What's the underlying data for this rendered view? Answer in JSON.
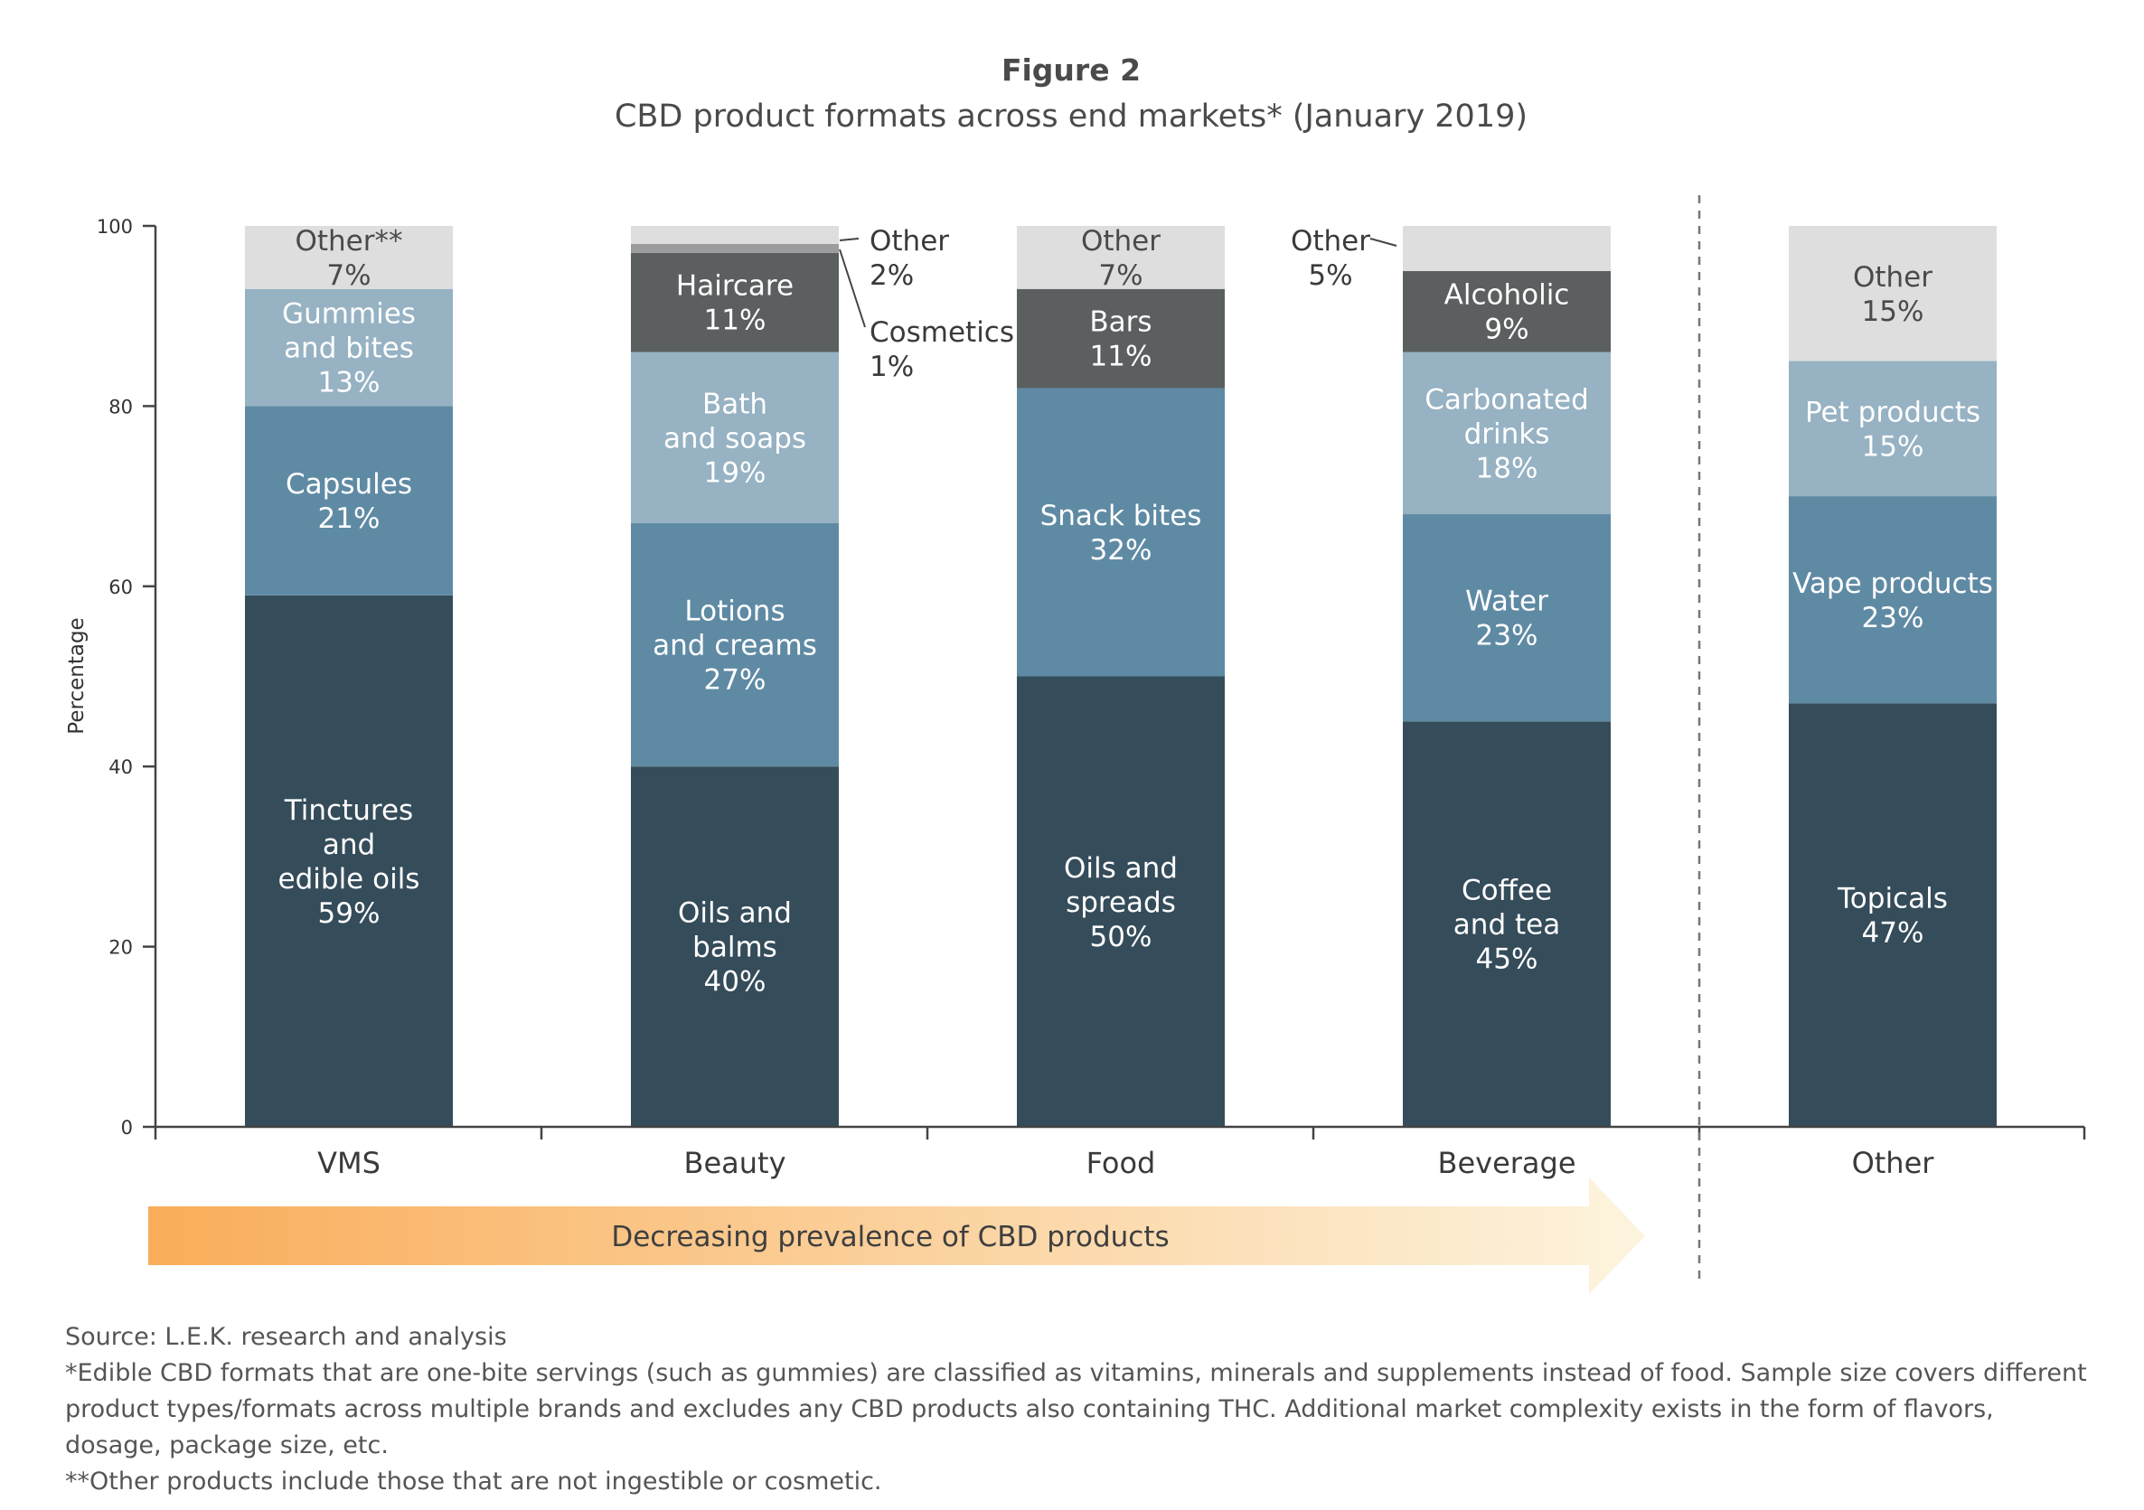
{
  "figure_label": "Figure 2",
  "colors": {
    "dark": "#354c5a",
    "mid": "#5f8aa4",
    "light": "#96b2c3",
    "charcoal": "#5b5f60",
    "grey": "#9a9c9d",
    "pale": "#dddedd",
    "axis": "#444444",
    "arrow_start": "#f9ad5a",
    "arrow_end": "#fdf4de"
  },
  "chart_data": {
    "type": "bar",
    "stacked": true,
    "title": "CBD product formats across end markets* (January 2019)",
    "xlabel": "",
    "ylabel": "Percentage",
    "ylim": [
      0,
      100
    ],
    "yticks": [
      0,
      20,
      40,
      60,
      80,
      100
    ],
    "grid": false,
    "categories": [
      "VMS",
      "Beauty",
      "Food",
      "Beverage",
      "Other"
    ],
    "bars": [
      {
        "category": "VMS",
        "segments": [
          {
            "lines": [
              "Tinctures",
              "and",
              "edible oils",
              "59%"
            ],
            "value": 59,
            "color": "dark"
          },
          {
            "lines": [
              "Capsules",
              "21%"
            ],
            "value": 21,
            "color": "mid"
          },
          {
            "lines": [
              "Gummies",
              "and bites",
              "13%"
            ],
            "value": 13,
            "color": "light"
          },
          {
            "lines": [
              "Other**",
              "7%"
            ],
            "value": 7,
            "color": "pale"
          }
        ]
      },
      {
        "category": "Beauty",
        "segments": [
          {
            "lines": [
              "Oils and",
              "balms",
              "40%"
            ],
            "value": 40,
            "color": "dark"
          },
          {
            "lines": [
              "Lotions",
              "and creams",
              "27%"
            ],
            "value": 27,
            "color": "mid"
          },
          {
            "lines": [
              "Bath",
              "and soaps",
              "19%"
            ],
            "value": 19,
            "color": "light"
          },
          {
            "lines": [
              "Haircare",
              "11%"
            ],
            "value": 11,
            "color": "charcoal"
          },
          {
            "lines": [],
            "value": 1,
            "color": "grey"
          },
          {
            "lines": [],
            "value": 2,
            "color": "pale"
          }
        ]
      },
      {
        "category": "Food",
        "segments": [
          {
            "lines": [
              "Oils and",
              "spreads",
              "50%"
            ],
            "value": 50,
            "color": "dark"
          },
          {
            "lines": [
              "Snack bites",
              "32%"
            ],
            "value": 32,
            "color": "mid"
          },
          {
            "lines": [
              "Bars",
              "11%"
            ],
            "value": 11,
            "color": "charcoal"
          },
          {
            "lines": [
              "Other",
              "7%"
            ],
            "value": 7,
            "color": "pale"
          }
        ]
      },
      {
        "category": "Beverage",
        "segments": [
          {
            "lines": [
              "Coffee",
              "and tea",
              "45%"
            ],
            "value": 45,
            "color": "dark"
          },
          {
            "lines": [
              "Water",
              "23%"
            ],
            "value": 23,
            "color": "mid"
          },
          {
            "lines": [
              "Carbonated",
              "drinks",
              "18%"
            ],
            "value": 18,
            "color": "light"
          },
          {
            "lines": [
              "Alcoholic",
              "9%"
            ],
            "value": 9,
            "color": "charcoal"
          },
          {
            "lines": [],
            "value": 5,
            "color": "pale"
          }
        ]
      },
      {
        "category": "Other",
        "segments": [
          {
            "lines": [
              "Topicals",
              "47%"
            ],
            "value": 47,
            "color": "dark"
          },
          {
            "lines": [
              "Vape products",
              "23%"
            ],
            "value": 23,
            "color": "mid"
          },
          {
            "lines": [
              "Pet products",
              "15%"
            ],
            "value": 15,
            "color": "light"
          },
          {
            "lines": [
              "Other",
              "15%"
            ],
            "value": 15,
            "color": "pale"
          }
        ]
      }
    ],
    "callouts": [
      {
        "bar": 1,
        "segment": 5,
        "lines": [
          "Other",
          "2%"
        ],
        "side": "right"
      },
      {
        "bar": 1,
        "segment": 4,
        "lines": [
          "Cosmetics",
          "1%"
        ],
        "side": "right"
      },
      {
        "bar": 3,
        "segment": 4,
        "lines": [
          "Other",
          "5%"
        ],
        "side": "left"
      }
    ],
    "divider_after_category": "Beverage",
    "annotation": "Decreasing prevalence of CBD products"
  },
  "notes": {
    "source": "Source: L.E.K. research and analysis",
    "footnote_1": "*Edible CBD formats that are one-bite servings (such as gummies) are classified as vitamins, minerals and supplements instead of food. Sample size covers different product types/formats across multiple brands and excludes any CBD products also containing THC. Additional market complexity exists in the form of flavors, dosage, package size, etc.",
    "footnote_2": "**Other products include those that are not ingestible or cosmetic."
  }
}
